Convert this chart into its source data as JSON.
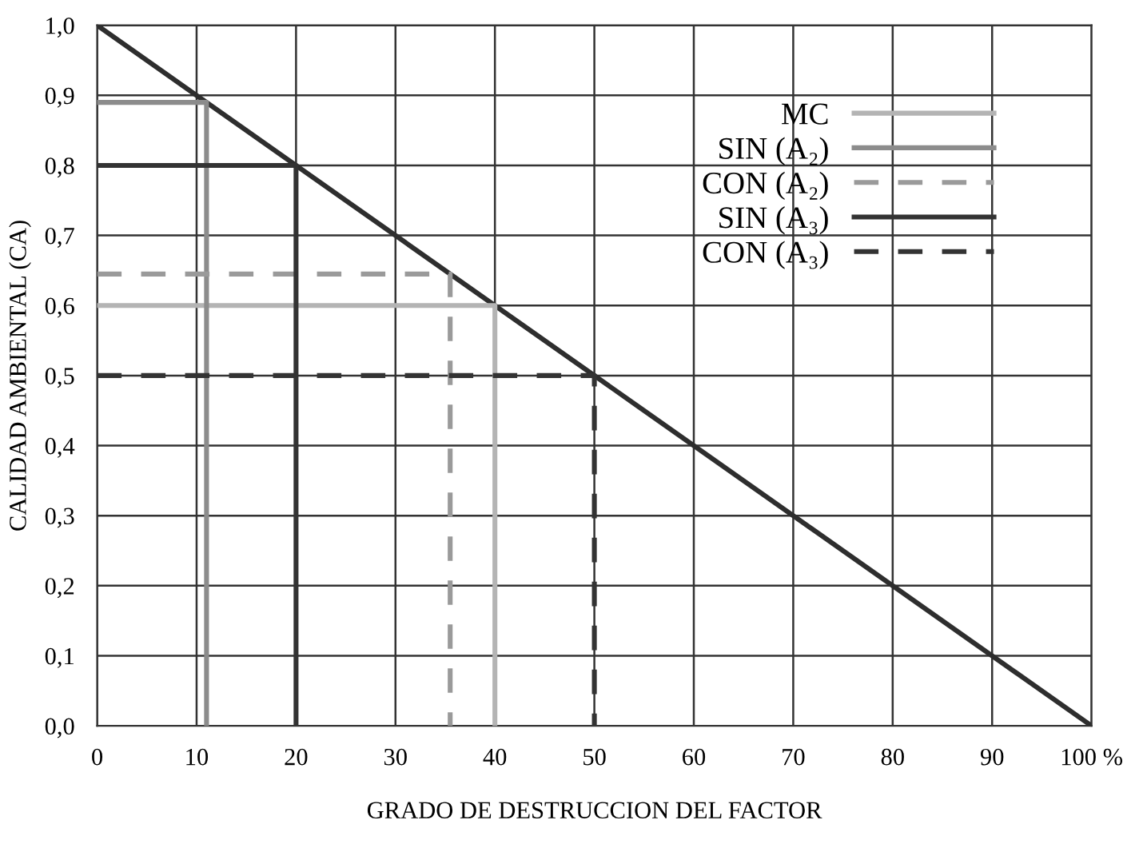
{
  "chart_data": {
    "type": "line",
    "xlabel": "GRADO DE DESTRUCCION DEL FACTOR",
    "ylabel": "CALIDAD AMBIENTAL (CA)",
    "xlim": [
      0,
      100
    ],
    "ylim": [
      0,
      1.0
    ],
    "xticks": [
      0,
      10,
      20,
      30,
      40,
      50,
      60,
      70,
      80,
      90,
      {
        "value": 100,
        "label": "100 %"
      }
    ],
    "yticks": [
      {
        "value": 0,
        "label": "0,0"
      },
      {
        "value": 0.1,
        "label": "0,1"
      },
      {
        "value": 0.2,
        "label": "0,2"
      },
      {
        "value": 0.3,
        "label": "0,3"
      },
      {
        "value": 0.4,
        "label": "0,4"
      },
      {
        "value": 0.5,
        "label": "0,5"
      },
      {
        "value": 0.6,
        "label": "0,6"
      },
      {
        "value": 0.7,
        "label": "0,7"
      },
      {
        "value": 0.8,
        "label": "0,8"
      },
      {
        "value": 0.9,
        "label": "0,9"
      },
      {
        "value": 1.0,
        "label": "1,0"
      }
    ],
    "grid": true,
    "legend": "top right",
    "marker": "none",
    "series": [
      {
        "color": "#2e2e2e",
        "x": [
          0,
          100
        ],
        "values": [
          1.0,
          0
        ],
        "line_style": "solid"
      },
      {
        "name": "MC",
        "color": "#b4b4b4",
        "x": [
          0,
          40,
          40
        ],
        "values": [
          0.6,
          0.6,
          0
        ],
        "line_style": "solid"
      },
      {
        "name": "SIN (A₂)",
        "color": "#8c8c8c",
        "x": [
          0,
          11,
          11
        ],
        "values": [
          0.89,
          0.89,
          0
        ],
        "line_style": "solid"
      },
      {
        "name": "CON (A₂)",
        "color": "#9a9a9a",
        "x": [
          0,
          35.5,
          35.5
        ],
        "values": [
          0.645,
          0.645,
          0
        ],
        "line_style": "dashed"
      },
      {
        "name": "SIN (A₃)",
        "color": "#333333",
        "x": [
          0,
          20,
          20
        ],
        "values": [
          0.8,
          0.8,
          0
        ],
        "line_style": "solid"
      },
      {
        "name": "CON (A₃)",
        "color": "#333333",
        "x": [
          0,
          50,
          50
        ],
        "values": [
          0.5,
          0.5,
          0
        ],
        "line_style": "dashed"
      }
    ]
  }
}
